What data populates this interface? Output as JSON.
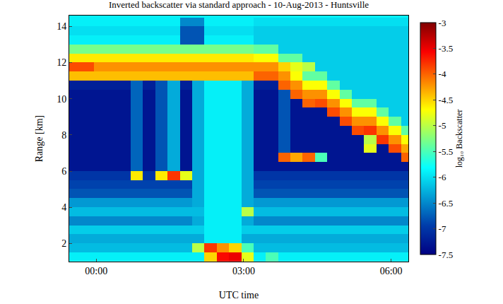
{
  "chart_data": {
    "type": "heatmap",
    "title": "Inverted backscatter via standard approach - 10-Aug-2013 - Huntsville",
    "x_label": "UTC time",
    "y_label": "Range [km]",
    "colorbar_title": "log₁₀ Backscatter",
    "color": "Jet",
    "grid": false,
    "xlim": [
      -0.55,
      6.35
    ],
    "ylim": [
      1,
      14.6
    ],
    "xticks": [
      {
        "value": 0,
        "label": "00:00"
      },
      {
        "value": 3,
        "label": "03:00"
      },
      {
        "value": 6,
        "label": "06:00"
      }
    ],
    "yticks": [
      2,
      4,
      6,
      8,
      10,
      12,
      14
    ],
    "colorbar_range": [
      -7.5,
      -3
    ],
    "colorbar_ticks": [
      -3,
      -3.5,
      -4,
      -4.5,
      -5,
      -5.5,
      -6,
      -6.5,
      -7,
      -7.5
    ],
    "x": [
      -0.425,
      -0.175,
      0.075,
      0.325,
      0.575,
      0.825,
      1.075,
      1.325,
      1.575,
      1.825,
      2.075,
      2.325,
      2.575,
      2.825,
      3.075,
      3.325,
      3.575,
      3.825,
      4.075,
      4.325,
      4.575,
      4.825,
      5.075,
      5.325,
      5.575,
      5.825,
      6.075,
      6.325
    ],
    "y": [
      1.25,
      1.75,
      2.25,
      2.75,
      3.25,
      3.75,
      4.25,
      4.75,
      5.25,
      5.75,
      6.25,
      6.75,
      7.25,
      7.75,
      8.25,
      8.75,
      9.25,
      9.75,
      10.25,
      10.75,
      11.25,
      11.75,
      12.25,
      12.75,
      13.25,
      13.75,
      14.25,
      14.75
    ],
    "cells": [
      [
        -5.9,
        -5.9,
        -5.9,
        -5.9,
        -5.9,
        -5.9,
        -5.9,
        -5.9,
        -5.9,
        -5.9,
        -5.9,
        -4.5,
        -3.6,
        -3.5,
        -4.8,
        -5.9,
        -5.5,
        -5.9,
        -5.9,
        -5.9,
        -5.9,
        -5.9,
        -5.9,
        -5.9,
        -5.9,
        -5.9,
        -5.9,
        -5.9
      ],
      [
        -6.2,
        -6.2,
        -6.2,
        -6.2,
        -6.2,
        -6.2,
        -6.2,
        -6.2,
        -6.2,
        -6.2,
        -5.0,
        -3.8,
        -4.2,
        -4.5,
        -5.5,
        -6.2,
        -6.2,
        -6.2,
        -6.2,
        -6.2,
        -6.2,
        -6.2,
        -6.2,
        -6.2,
        -6.2,
        -6.2,
        -6.2,
        -6.2
      ],
      [
        -6.3,
        -6.3,
        -6.3,
        -6.3,
        -6.3,
        -6.3,
        -6.3,
        -6.3,
        -6.3,
        -6.3,
        -6.3,
        -5.9,
        -5.9,
        -5.9,
        -6.3,
        -6.3,
        -6.3,
        -6.3,
        -6.3,
        -6.3,
        -6.3,
        -6.3,
        -6.3,
        -6.3,
        -6.3,
        -6.3,
        -6.3,
        -6.3
      ],
      [
        -6.1,
        -6.1,
        -6.1,
        -6.1,
        -6.1,
        -6.1,
        -6.1,
        -6.1,
        -6.1,
        -6.1,
        -6.1,
        -5.9,
        -5.9,
        -5.9,
        -6.1,
        -6.1,
        -6.1,
        -6.1,
        -6.1,
        -6.1,
        -6.1,
        -6.1,
        -6.1,
        -6.1,
        -6.1,
        -6.1,
        -6.1,
        -6.1
      ],
      [
        -6.5,
        -6.5,
        -6.5,
        -6.5,
        -6.5,
        -6.5,
        -6.5,
        -6.5,
        -6.5,
        -6.5,
        -6.3,
        -5.9,
        -5.9,
        -5.9,
        -6.3,
        -6.5,
        -6.5,
        -6.5,
        -6.5,
        -6.5,
        -6.5,
        -6.5,
        -6.5,
        -6.5,
        -6.5,
        -6.5,
        -6.5,
        -6.5
      ],
      [
        -6.2,
        -6.2,
        -6.2,
        -6.2,
        -6.2,
        -6.2,
        -6.2,
        -6.2,
        -6.2,
        -6.2,
        -6.2,
        -5.9,
        -5.9,
        -5.9,
        -5.0,
        -6.2,
        -6.2,
        -6.2,
        -6.2,
        -6.2,
        -6.2,
        -6.2,
        -6.2,
        -6.2,
        -6.2,
        -6.2,
        -6.2,
        -6.2
      ],
      [
        -6.4,
        -6.4,
        -6.4,
        -6.4,
        -6.4,
        -6.4,
        -6.4,
        -6.4,
        -6.4,
        -6.4,
        -6.3,
        -5.9,
        -5.9,
        -5.9,
        -6.3,
        -6.4,
        -6.4,
        -6.4,
        -6.4,
        -6.4,
        -6.4,
        -6.4,
        -6.4,
        -6.4,
        -6.4,
        -6.4,
        -6.4,
        -6.4
      ],
      [
        -6.8,
        -6.8,
        -6.8,
        -6.8,
        -6.8,
        -6.8,
        -6.8,
        -6.8,
        -6.8,
        -6.8,
        -6.3,
        -5.9,
        -5.9,
        -5.9,
        -6.3,
        -6.8,
        -6.8,
        -6.8,
        -6.8,
        -6.8,
        -6.8,
        -6.8,
        -6.8,
        -6.8,
        -6.8,
        -6.8,
        -6.8,
        -6.8
      ],
      [
        -6.9,
        -6.9,
        -6.9,
        -6.9,
        -6.9,
        -6.9,
        -6.9,
        -6.9,
        -6.9,
        -6.9,
        -6.3,
        -5.9,
        -5.9,
        -5.9,
        -6.3,
        -6.9,
        -6.9,
        -6.9,
        -6.9,
        -6.9,
        -6.9,
        -6.9,
        -6.9,
        -6.9,
        -6.9,
        -6.9,
        -6.9,
        -6.9
      ],
      [
        -7.0,
        -7.0,
        -7.0,
        -7.0,
        -7.0,
        -4.6,
        -7.0,
        -4.6,
        -3.8,
        -4.8,
        -6.3,
        -5.9,
        -5.9,
        -5.9,
        -6.3,
        -7.0,
        -7.0,
        -7.0,
        -7.0,
        -7.0,
        -7.0,
        -7.0,
        -7.0,
        -7.0,
        -7.0,
        -7.0,
        -7.0,
        -7.0
      ],
      [
        -7.3,
        -7.3,
        -7.3,
        -7.3,
        -7.3,
        -6.7,
        -7.3,
        -6.8,
        -6.3,
        -7.3,
        -6.3,
        -5.9,
        -5.9,
        -5.9,
        -6.3,
        -7.3,
        -7.3,
        -7.3,
        -7.3,
        -7.3,
        -7.3,
        -7.3,
        -7.3,
        -7.3,
        -7.3,
        -7.3,
        -7.3,
        -7.3
      ],
      [
        -7.3,
        -7.3,
        -7.3,
        -7.3,
        -7.3,
        -6.7,
        -7.3,
        -6.8,
        -6.3,
        -7.3,
        -6.3,
        -5.9,
        -5.9,
        -5.9,
        -6.3,
        -7.3,
        -7.3,
        -4.0,
        -4.3,
        -4.0,
        -5.5,
        -7.3,
        -7.3,
        -7.3,
        -7.3,
        -7.3,
        -7.3,
        -4.0
      ],
      [
        -7.3,
        -7.3,
        -7.3,
        -7.3,
        -7.3,
        -6.7,
        -7.3,
        -6.8,
        -6.3,
        -7.3,
        -6.3,
        -5.9,
        -5.9,
        -5.9,
        -6.3,
        -7.3,
        -7.3,
        -6.8,
        -7.3,
        -7.3,
        -7.3,
        -7.3,
        -7.3,
        -7.3,
        -4.8,
        -7.3,
        -3.9,
        -4.3
      ],
      [
        -7.3,
        -7.3,
        -7.3,
        -7.3,
        -7.3,
        -6.7,
        -7.3,
        -6.8,
        -6.3,
        -7.3,
        -6.3,
        -5.9,
        -5.9,
        -5.9,
        -6.3,
        -7.3,
        -7.3,
        -6.8,
        -7.3,
        -7.3,
        -7.3,
        -7.3,
        -7.3,
        -7.3,
        -5.0,
        -3.8,
        -4.2,
        -4.7
      ],
      [
        -7.3,
        -7.3,
        -7.3,
        -7.3,
        -7.3,
        -6.7,
        -7.3,
        -6.8,
        -6.3,
        -7.3,
        -6.3,
        -5.9,
        -5.9,
        -5.9,
        -6.3,
        -7.3,
        -7.3,
        -6.8,
        -7.3,
        -7.3,
        -7.3,
        -7.3,
        -7.3,
        -3.9,
        -3.8,
        -4.2,
        -4.7,
        -5.4
      ],
      [
        -7.3,
        -7.3,
        -7.3,
        -7.3,
        -7.3,
        -6.7,
        -7.3,
        -6.8,
        -6.3,
        -7.3,
        -6.3,
        -5.9,
        -5.9,
        -5.9,
        -6.3,
        -7.3,
        -7.3,
        -6.8,
        -7.3,
        -7.3,
        -7.3,
        -7.3,
        -3.9,
        -4.2,
        -4.2,
        -4.7,
        -5.4,
        -6.1
      ],
      [
        -7.3,
        -7.3,
        -7.3,
        -7.3,
        -7.3,
        -6.7,
        -7.3,
        -6.8,
        -6.3,
        -7.3,
        -6.3,
        -5.9,
        -5.9,
        -5.9,
        -6.3,
        -7.3,
        -7.3,
        -6.8,
        -7.3,
        -7.3,
        -7.3,
        -3.9,
        -4.2,
        -4.7,
        -4.7,
        -5.4,
        -6.1,
        -6.1
      ],
      [
        -7.3,
        -7.3,
        -7.3,
        -7.3,
        -7.3,
        -6.7,
        -7.3,
        -6.8,
        -6.3,
        -7.3,
        -6.3,
        -5.9,
        -5.9,
        -5.9,
        -6.3,
        -7.3,
        -7.3,
        -6.8,
        -7.3,
        -4.0,
        -3.9,
        -4.2,
        -4.7,
        -5.4,
        -5.4,
        -6.1,
        -6.1,
        -6.1
      ],
      [
        -7.3,
        -7.3,
        -7.3,
        -7.3,
        -7.3,
        -6.7,
        -7.3,
        -6.8,
        -6.3,
        -7.3,
        -6.3,
        -5.9,
        -5.9,
        -5.9,
        -6.3,
        -7.3,
        -7.3,
        -6.8,
        -4.0,
        -4.2,
        -4.2,
        -4.7,
        -5.4,
        -6.1,
        -6.1,
        -6.1,
        -6.1,
        -6.1
      ],
      [
        -7.2,
        -7.2,
        -7.2,
        -7.2,
        -7.2,
        -6.7,
        -7.2,
        -6.8,
        -6.3,
        -7.2,
        -6.3,
        -5.9,
        -5.9,
        -5.9,
        -6.3,
        -7.2,
        -7.2,
        -4.0,
        -4.2,
        -4.7,
        -4.7,
        -5.4,
        -6.1,
        -6.1,
        -6.1,
        -6.1,
        -6.1,
        -6.1
      ],
      [
        -4.4,
        -4.4,
        -4.4,
        -4.4,
        -4.4,
        -4.4,
        -4.4,
        -4.4,
        -4.4,
        -4.4,
        -4.4,
        -4.4,
        -4.4,
        -4.4,
        -4.4,
        -4.0,
        -4.0,
        -4.2,
        -4.7,
        -5.4,
        -5.4,
        -6.1,
        -6.1,
        -6.1,
        -6.1,
        -6.1,
        -6.1,
        -6.1
      ],
      [
        -3.9,
        -3.9,
        -4.2,
        -4.2,
        -4.2,
        -4.2,
        -4.2,
        -4.2,
        -4.2,
        -4.2,
        -4.2,
        -4.2,
        -4.2,
        -4.2,
        -4.2,
        -4.2,
        -4.2,
        -4.5,
        -4.8,
        -5.0,
        -6.1,
        -6.1,
        -6.1,
        -6.1,
        -6.1,
        -6.1,
        -6.1,
        -6.1
      ],
      [
        -4.6,
        -4.6,
        -4.6,
        -4.6,
        -4.6,
        -4.6,
        -4.6,
        -4.6,
        -4.6,
        -4.6,
        -4.6,
        -4.6,
        -4.6,
        -4.6,
        -4.6,
        -4.7,
        -4.7,
        -5.4,
        -5.4,
        -6.1,
        -6.1,
        -6.1,
        -6.1,
        -6.1,
        -6.1,
        -6.1,
        -6.1,
        -6.1
      ],
      [
        -5.3,
        -5.3,
        -5.3,
        -5.3,
        -5.3,
        -5.3,
        -5.3,
        -5.3,
        -5.3,
        -5.3,
        -5.3,
        -5.3,
        -5.3,
        -5.3,
        -5.3,
        -5.4,
        -5.4,
        -6.1,
        -6.1,
        -6.1,
        -6.1,
        -6.1,
        -6.1,
        -6.1,
        -6.1,
        -6.1,
        -6.1,
        -6.1
      ],
      [
        -5.9,
        -5.9,
        -5.9,
        -5.9,
        -5.9,
        -5.9,
        -5.9,
        -5.9,
        -5.9,
        -6.8,
        -6.8,
        -5.9,
        -5.9,
        -5.9,
        -5.9,
        -6.1,
        -6.1,
        -6.1,
        -6.1,
        -6.1,
        -6.1,
        -6.1,
        -6.1,
        -6.1,
        -6.1,
        -6.1,
        -6.1,
        -6.1
      ],
      [
        -6.0,
        -6.0,
        -6.0,
        -6.0,
        -6.0,
        -6.0,
        -6.0,
        -6.0,
        -6.0,
        -6.8,
        -6.8,
        -6.0,
        -6.0,
        -6.0,
        -6.0,
        -6.1,
        -6.1,
        -6.1,
        -6.1,
        -6.1,
        -6.1,
        -6.1,
        -6.1,
        -6.1,
        -6.1,
        -6.1,
        -6.1,
        -6.1
      ],
      [
        -5.9,
        -5.9,
        -5.9,
        -5.9,
        -5.9,
        -5.9,
        -5.9,
        -5.9,
        -5.9,
        -6.5,
        -6.5,
        -5.9,
        -5.9,
        -5.9,
        -5.9,
        -6.0,
        -6.0,
        -6.0,
        -6.0,
        -6.0,
        -6.0,
        -6.0,
        -6.0,
        -6.0,
        -6.0,
        -6.0,
        -6.0,
        -6.0
      ],
      [
        -5.9,
        -5.9,
        -5.9,
        -5.9,
        -5.9,
        -5.9,
        -5.9,
        -5.9,
        -5.9,
        -5.9,
        -5.9,
        -5.9,
        -5.9,
        -5.9,
        -5.9,
        -5.9,
        -5.9,
        -5.9,
        -5.9,
        -5.9,
        -5.9,
        -5.9,
        -5.9,
        -5.9,
        -5.9,
        -5.9,
        -5.9,
        -5.9
      ]
    ]
  }
}
